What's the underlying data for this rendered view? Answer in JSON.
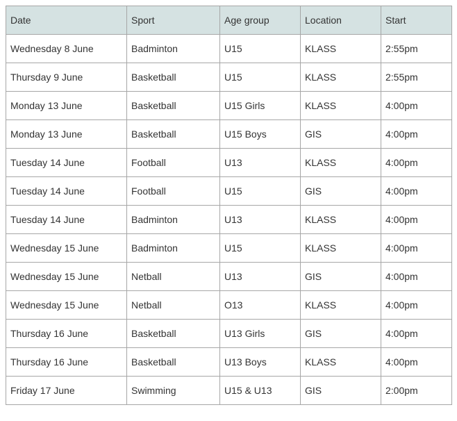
{
  "table": {
    "header_bg": "#d5e2e2",
    "border_color": "#a6a6a6",
    "text_color": "#333333",
    "font_size": 14,
    "columns": [
      {
        "key": "date",
        "label": "Date",
        "width": 174
      },
      {
        "key": "sport",
        "label": "Sport",
        "width": 134
      },
      {
        "key": "age",
        "label": "Age group",
        "width": 116
      },
      {
        "key": "loc",
        "label": "Location",
        "width": 116
      },
      {
        "key": "start",
        "label": "Start",
        "width": 102
      }
    ],
    "rows": [
      {
        "date": "Wednesday 8 June",
        "sport": "Badminton",
        "age": "U15",
        "loc": "KLASS",
        "start": "2:55pm"
      },
      {
        "date": "Thursday 9 June",
        "sport": "Basketball",
        "age": "U15",
        "loc": "KLASS",
        "start": "2:55pm"
      },
      {
        "date": "Monday 13 June",
        "sport": "Basketball",
        "age": "U15 Girls",
        "loc": "KLASS",
        "start": "4:00pm"
      },
      {
        "date": "Monday 13 June",
        "sport": "Basketball",
        "age": "U15 Boys",
        "loc": "GIS",
        "start": "4:00pm"
      },
      {
        "date": "Tuesday 14 June",
        "sport": "Football",
        "age": "U13",
        "loc": "KLASS",
        "start": "4:00pm"
      },
      {
        "date": "Tuesday 14 June",
        "sport": "Football",
        "age": "U15",
        "loc": "GIS",
        "start": "4:00pm"
      },
      {
        "date": "Tuesday 14 June",
        "sport": "Badminton",
        "age": "U13",
        "loc": "KLASS",
        "start": "4:00pm"
      },
      {
        "date": "Wednesday 15 June",
        "sport": "Badminton",
        "age": "U15",
        "loc": "KLASS",
        "start": "4:00pm"
      },
      {
        "date": "Wednesday 15 June",
        "sport": "Netball",
        "age": "U13",
        "loc": "GIS",
        "start": "4:00pm"
      },
      {
        "date": "Wednesday 15 June",
        "sport": "Netball",
        "age": "O13",
        "loc": "KLASS",
        "start": "4:00pm"
      },
      {
        "date": "Thursday 16 June",
        "sport": "Basketball",
        "age": "U13 Girls",
        "loc": "GIS",
        "start": "4:00pm"
      },
      {
        "date": "Thursday 16 June",
        "sport": "Basketball",
        "age": "U13 Boys",
        "loc": "KLASS",
        "start": "4:00pm"
      },
      {
        "date": "Friday 17 June",
        "sport": "Swimming",
        "age": "U15 & U13",
        "loc": "GIS",
        "start": "2:00pm"
      }
    ]
  }
}
